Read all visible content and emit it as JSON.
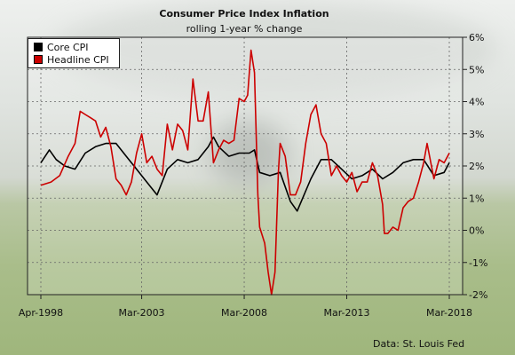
{
  "chart_data": {
    "type": "line",
    "title": "Consumer Price Index Inflation",
    "subtitle": "rolling 1-year % change",
    "source": "Data: St. Louis Fed",
    "x_tick_labels": [
      "Apr-1998",
      "Mar-2003",
      "Mar-2008",
      "Mar-2013",
      "Mar-2018"
    ],
    "x_ticks": [
      "1998-04",
      "2003-03",
      "2008-03",
      "2013-03",
      "2018-03"
    ],
    "xlim": [
      "1998-04",
      "2018-03"
    ],
    "y_tick_labels": [
      "-2%",
      "-1%",
      "0%",
      "1%",
      "2%",
      "3%",
      "4%",
      "5%",
      "6%"
    ],
    "y_ticks": [
      -2,
      -1,
      0,
      1,
      2,
      3,
      4,
      5,
      6
    ],
    "ylim": [
      -2,
      6
    ],
    "ylabel": "",
    "xlabel": "",
    "y_axis_position": "right",
    "grid": true,
    "legend_position": "top-left",
    "series": [
      {
        "name": "Core CPI",
        "color": "#000000",
        "points": [
          [
            "1998-04",
            2.1
          ],
          [
            "1998-09",
            2.5
          ],
          [
            "1999-01",
            2.2
          ],
          [
            "1999-06",
            2.0
          ],
          [
            "1999-12",
            1.9
          ],
          [
            "2000-06",
            2.4
          ],
          [
            "2000-12",
            2.6
          ],
          [
            "2001-06",
            2.7
          ],
          [
            "2001-12",
            2.7
          ],
          [
            "2002-06",
            2.3
          ],
          [
            "2002-12",
            1.9
          ],
          [
            "2003-06",
            1.5
          ],
          [
            "2003-12",
            1.1
          ],
          [
            "2004-06",
            1.9
          ],
          [
            "2004-12",
            2.2
          ],
          [
            "2005-06",
            2.1
          ],
          [
            "2005-12",
            2.2
          ],
          [
            "2006-06",
            2.6
          ],
          [
            "2006-09",
            2.9
          ],
          [
            "2006-12",
            2.6
          ],
          [
            "2007-06",
            2.3
          ],
          [
            "2007-12",
            2.4
          ],
          [
            "2008-06",
            2.4
          ],
          [
            "2008-09",
            2.5
          ],
          [
            "2008-12",
            1.8
          ],
          [
            "2009-06",
            1.7
          ],
          [
            "2009-12",
            1.8
          ],
          [
            "2010-06",
            0.9
          ],
          [
            "2010-10",
            0.6
          ],
          [
            "2011-06",
            1.6
          ],
          [
            "2011-12",
            2.2
          ],
          [
            "2012-06",
            2.2
          ],
          [
            "2012-12",
            1.9
          ],
          [
            "2013-06",
            1.6
          ],
          [
            "2013-12",
            1.7
          ],
          [
            "2014-06",
            1.9
          ],
          [
            "2014-12",
            1.6
          ],
          [
            "2015-06",
            1.8
          ],
          [
            "2015-12",
            2.1
          ],
          [
            "2016-06",
            2.2
          ],
          [
            "2016-12",
            2.2
          ],
          [
            "2017-06",
            1.7
          ],
          [
            "2017-12",
            1.8
          ],
          [
            "2018-03",
            2.1
          ]
        ]
      },
      {
        "name": "Headline CPI",
        "color": "#cc0000",
        "points": [
          [
            "1998-04",
            1.4
          ],
          [
            "1998-10",
            1.5
          ],
          [
            "1999-03",
            1.7
          ],
          [
            "1999-08",
            2.3
          ],
          [
            "1999-12",
            2.7
          ],
          [
            "2000-03",
            3.7
          ],
          [
            "2000-06",
            3.6
          ],
          [
            "2000-09",
            3.5
          ],
          [
            "2000-12",
            3.4
          ],
          [
            "2001-03",
            2.9
          ],
          [
            "2001-06",
            3.2
          ],
          [
            "2001-09",
            2.6
          ],
          [
            "2001-12",
            1.6
          ],
          [
            "2002-03",
            1.4
          ],
          [
            "2002-06",
            1.1
          ],
          [
            "2002-09",
            1.5
          ],
          [
            "2002-12",
            2.4
          ],
          [
            "2003-03",
            3.0
          ],
          [
            "2003-06",
            2.1
          ],
          [
            "2003-09",
            2.3
          ],
          [
            "2003-12",
            1.9
          ],
          [
            "2004-03",
            1.7
          ],
          [
            "2004-06",
            3.3
          ],
          [
            "2004-09",
            2.5
          ],
          [
            "2004-12",
            3.3
          ],
          [
            "2005-03",
            3.1
          ],
          [
            "2005-06",
            2.5
          ],
          [
            "2005-09",
            4.7
          ],
          [
            "2005-12",
            3.4
          ],
          [
            "2006-03",
            3.4
          ],
          [
            "2006-06",
            4.3
          ],
          [
            "2006-09",
            2.1
          ],
          [
            "2006-12",
            2.5
          ],
          [
            "2007-03",
            2.8
          ],
          [
            "2007-06",
            2.7
          ],
          [
            "2007-09",
            2.8
          ],
          [
            "2007-12",
            4.1
          ],
          [
            "2008-03",
            4.0
          ],
          [
            "2008-05",
            4.2
          ],
          [
            "2008-07",
            5.6
          ],
          [
            "2008-09",
            4.9
          ],
          [
            "2008-11",
            1.1
          ],
          [
            "2008-12",
            0.1
          ],
          [
            "2009-03",
            -0.4
          ],
          [
            "2009-05",
            -1.3
          ],
          [
            "2009-07",
            -2.0
          ],
          [
            "2009-09",
            -1.3
          ],
          [
            "2009-11",
            1.8
          ],
          [
            "2009-12",
            2.7
          ],
          [
            "2010-03",
            2.3
          ],
          [
            "2010-06",
            1.1
          ],
          [
            "2010-09",
            1.1
          ],
          [
            "2010-12",
            1.5
          ],
          [
            "2011-03",
            2.7
          ],
          [
            "2011-06",
            3.6
          ],
          [
            "2011-09",
            3.9
          ],
          [
            "2011-12",
            3.0
          ],
          [
            "2012-03",
            2.7
          ],
          [
            "2012-06",
            1.7
          ],
          [
            "2012-09",
            2.0
          ],
          [
            "2012-12",
            1.7
          ],
          [
            "2013-03",
            1.5
          ],
          [
            "2013-06",
            1.8
          ],
          [
            "2013-09",
            1.2
          ],
          [
            "2013-12",
            1.5
          ],
          [
            "2014-03",
            1.5
          ],
          [
            "2014-06",
            2.1
          ],
          [
            "2014-09",
            1.7
          ],
          [
            "2014-12",
            0.8
          ],
          [
            "2015-01",
            -0.1
          ],
          [
            "2015-03",
            -0.1
          ],
          [
            "2015-06",
            0.1
          ],
          [
            "2015-09",
            0.0
          ],
          [
            "2015-12",
            0.7
          ],
          [
            "2016-03",
            0.9
          ],
          [
            "2016-06",
            1.0
          ],
          [
            "2016-09",
            1.5
          ],
          [
            "2016-12",
            2.1
          ],
          [
            "2017-02",
            2.7
          ],
          [
            "2017-06",
            1.6
          ],
          [
            "2017-09",
            2.2
          ],
          [
            "2017-12",
            2.1
          ],
          [
            "2018-03",
            2.4
          ]
        ]
      }
    ]
  }
}
